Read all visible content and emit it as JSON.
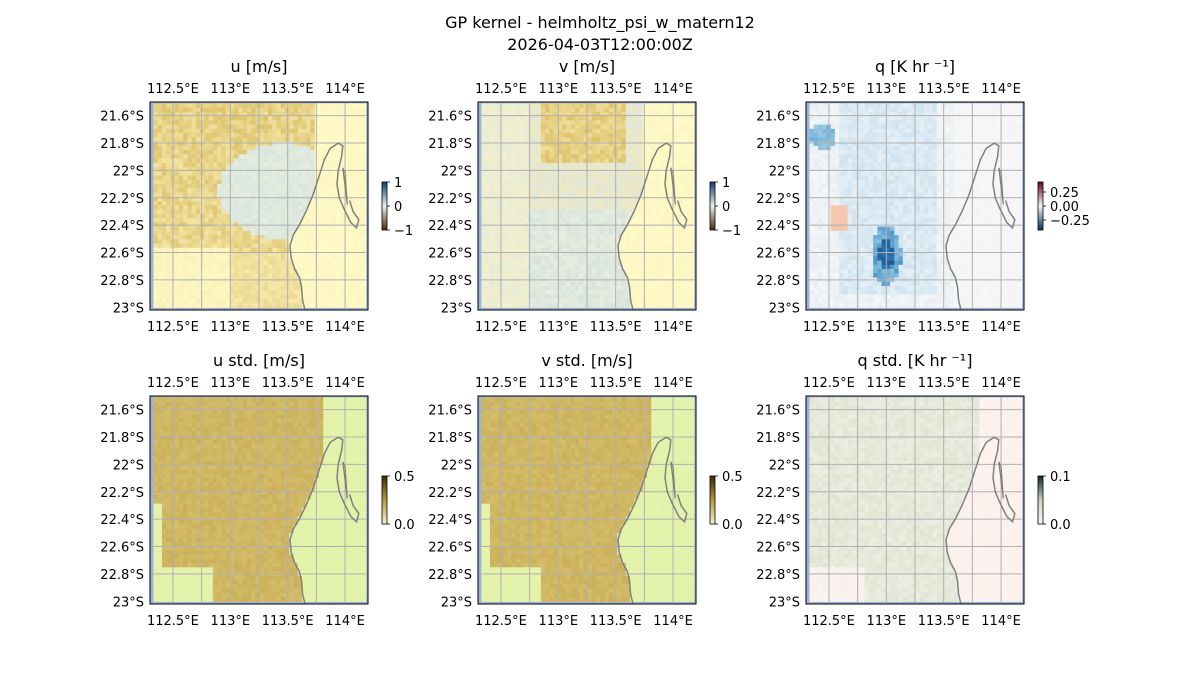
{
  "figure": {
    "title_line1": "GP kernel - helmholtz_psi_w_matern12",
    "title_line2": "2026-04-03T12:00:00Z"
  },
  "chart_data": [
    {
      "type": "heatmap",
      "title": "u [m/s]",
      "field": "u",
      "xticks": [
        "112.5°E",
        "113°E",
        "113.5°E",
        "114°E"
      ],
      "yticks": [
        "21.6°S",
        "21.8°S",
        "22°S",
        "22.2°S",
        "22.4°S",
        "22.6°S",
        "22.8°S",
        "23°S"
      ],
      "xlim": [
        112.3,
        114.2
      ],
      "ylim": [
        -23.02,
        -21.5
      ],
      "colorbar": {
        "ticks": [
          "1",
          "0",
          "−1"
        ],
        "range": [
          -1,
          1
        ],
        "colors": [
          "#0d3b6e",
          "#e8f1f0",
          "#4a2c06"
        ]
      }
    },
    {
      "type": "heatmap",
      "title": "v [m/s]",
      "field": "v",
      "xticks": [
        "112.5°E",
        "113°E",
        "113.5°E",
        "114°E"
      ],
      "yticks": [
        "21.6°S",
        "21.8°S",
        "22°S",
        "22.2°S",
        "22.4°S",
        "22.6°S",
        "22.8°S",
        "23°S"
      ],
      "xlim": [
        112.3,
        114.2
      ],
      "ylim": [
        -23.02,
        -21.5
      ],
      "colorbar": {
        "ticks": [
          "1",
          "0",
          "−1"
        ],
        "range": [
          -1,
          1
        ],
        "colors": [
          "#0d3b6e",
          "#e8f1f0",
          "#4a2c06"
        ]
      }
    },
    {
      "type": "heatmap",
      "title": "q [K hr ⁻¹]",
      "field": "q",
      "xticks": [
        "112.5°E",
        "113°E",
        "113.5°E",
        "114°E"
      ],
      "yticks": [
        "21.6°S",
        "21.8°S",
        "22°S",
        "22.2°S",
        "22.4°S",
        "22.6°S",
        "22.8°S",
        "23°S"
      ],
      "xlim": [
        112.3,
        114.2
      ],
      "ylim": [
        -23.02,
        -21.5
      ],
      "colorbar": {
        "ticks": [
          "0.25",
          "0.00",
          "−0.25"
        ],
        "range": [
          -0.4,
          0.4
        ],
        "colors": [
          "#67001f",
          "#f7f7f7",
          "#053061"
        ]
      }
    },
    {
      "type": "heatmap",
      "title": "u std. [m/s]",
      "field": "u_std",
      "xticks": [
        "112.5°E",
        "113°E",
        "113.5°E",
        "114°E"
      ],
      "yticks": [
        "21.6°S",
        "21.8°S",
        "22°S",
        "22.2°S",
        "22.4°S",
        "22.6°S",
        "22.8°S",
        "23°S"
      ],
      "xlim": [
        112.3,
        114.2
      ],
      "ylim": [
        -23.02,
        -21.5
      ],
      "colorbar": {
        "ticks": [
          "0.5",
          "0.0"
        ],
        "range": [
          0,
          0.6
        ],
        "colors": [
          "#3b2a05",
          "#b99a3c",
          "#eef5c6"
        ]
      }
    },
    {
      "type": "heatmap",
      "title": "v std. [m/s]",
      "field": "v_std",
      "xticks": [
        "112.5°E",
        "113°E",
        "113.5°E",
        "114°E"
      ],
      "yticks": [
        "21.6°S",
        "21.8°S",
        "22°S",
        "22.2°S",
        "22.4°S",
        "22.6°S",
        "22.8°S",
        "23°S"
      ],
      "xlim": [
        112.3,
        114.2
      ],
      "ylim": [
        -23.02,
        -21.5
      ],
      "colorbar": {
        "ticks": [
          "0.5",
          "0.0"
        ],
        "range": [
          0,
          0.6
        ],
        "colors": [
          "#3b2a05",
          "#b99a3c",
          "#eef5c6"
        ]
      }
    },
    {
      "type": "heatmap",
      "title": "q std. [K hr ⁻¹]",
      "field": "q_std",
      "xticks": [
        "112.5°E",
        "113°E",
        "113.5°E",
        "114°E"
      ],
      "yticks": [
        "21.6°S",
        "21.8°S",
        "22°S",
        "22.2°S",
        "22.4°S",
        "22.6°S",
        "22.8°S",
        "23°S"
      ],
      "xlim": [
        112.3,
        114.2
      ],
      "ylim": [
        -23.02,
        -21.5
      ],
      "colorbar": {
        "ticks": [
          "0.1",
          "0.0"
        ],
        "range": [
          0,
          0.12
        ],
        "colors": [
          "#0b2a1a",
          "#c9d8c4",
          "#fff4f0"
        ]
      }
    }
  ],
  "colors": {
    "ocean_edge": "#9db4d8",
    "coast": "#808080",
    "grid": "#b0b0b0"
  }
}
